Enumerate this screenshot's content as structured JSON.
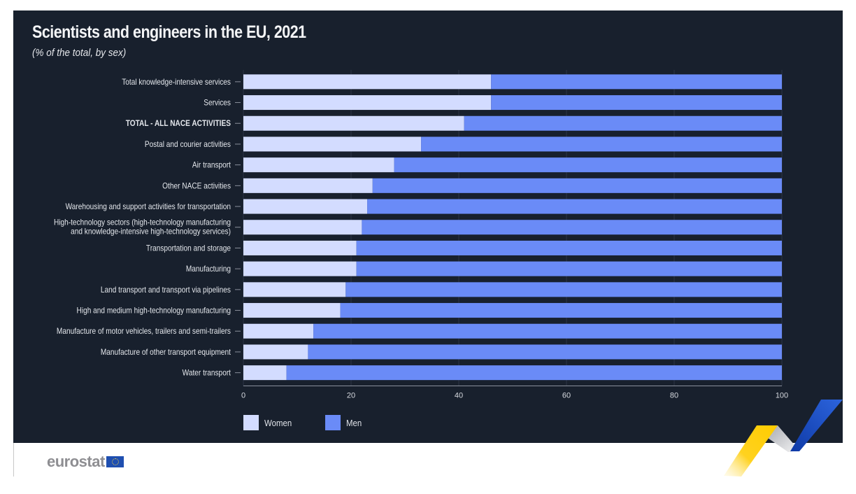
{
  "chart_data": {
    "type": "bar",
    "orientation": "horizontal",
    "stacked": true,
    "title": "Scientists and engineers in the EU, 2021",
    "subtitle": "(% of the total, by sex)",
    "xlabel": "",
    "ylabel": "",
    "xlim": [
      0,
      100
    ],
    "xticks": [
      0,
      20,
      40,
      60,
      80,
      100
    ],
    "grid": true,
    "legend_position": "bottom-left",
    "categories": [
      "Total knowledge-intensive services",
      "Services",
      "TOTAL - ALL NACE ACTIVITIES",
      "Postal and courier activities",
      "Air transport",
      "Other NACE activities",
      "Warehousing and support activities for transportation",
      "High-technology sectors (high-technology manufacturing\nand knowledge-intensive high-technology services)",
      "Transportation and storage",
      "Manufacturing",
      "Land transport and transport via pipelines",
      "High and medium high-technology manufacturing",
      "Manufacture of motor vehicles, trailers and semi-trailers",
      "Manufacture of other transport equipment",
      "Water transport"
    ],
    "bold_categories": [
      "TOTAL - ALL NACE ACTIVITIES"
    ],
    "series": [
      {
        "name": "Women",
        "color": "#d3dcff",
        "values": [
          46,
          46,
          41,
          33,
          28,
          24,
          23,
          22,
          21,
          21,
          19,
          18,
          13,
          12,
          8
        ]
      },
      {
        "name": "Men",
        "color": "#6a8bf7",
        "values": [
          54,
          54,
          59,
          67,
          72,
          76,
          77,
          78,
          79,
          79,
          81,
          82,
          87,
          88,
          92
        ]
      }
    ]
  },
  "colors": {
    "background": "#18202d",
    "text": "#dfe2e8",
    "women": "#d3dcff",
    "men": "#6a8bf7"
  },
  "footer": {
    "brand": "eurostat",
    "flag_icon": "eu-flag-icon"
  }
}
